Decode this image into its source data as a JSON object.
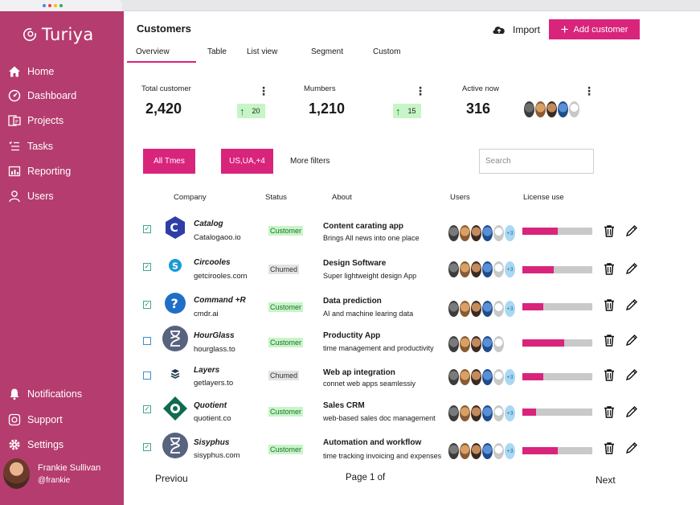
{
  "app": {
    "name": "Turiya"
  },
  "nav": {
    "items": [
      {
        "label": "Home",
        "icon": "home-icon"
      },
      {
        "label": "Dashboard",
        "icon": "dashboard-icon"
      },
      {
        "label": "Projects",
        "icon": "projects-icon"
      },
      {
        "label": "Tasks",
        "icon": "tasks-icon"
      },
      {
        "label": "Reporting",
        "icon": "reporting-icon"
      },
      {
        "label": "Users",
        "icon": "users-icon"
      }
    ],
    "bottom": [
      {
        "label": "Notifications",
        "icon": "bell-icon"
      },
      {
        "label": "Support",
        "icon": "support-icon"
      },
      {
        "label": "Settings",
        "icon": "gear-icon"
      }
    ]
  },
  "profile": {
    "name": "Frankie Sullivan",
    "handle": "@frankie"
  },
  "header": {
    "title": "Customers",
    "import_label": "Import",
    "add_label": "Add customer"
  },
  "tabs": [
    "Overview",
    "Table",
    "List view",
    "Segment",
    "Custom"
  ],
  "stats": [
    {
      "label": "Total customer",
      "value": "2,420",
      "delta": "20"
    },
    {
      "label": "Mumbers",
      "value": "1,210",
      "delta": "15"
    },
    {
      "label": "Active now",
      "value": "316"
    }
  ],
  "filters": {
    "times": "All Tmes",
    "regions": "US,UA,+4",
    "more": "More filters",
    "search_placeholder": "Search"
  },
  "table": {
    "headers": [
      "Company",
      "Status",
      "About",
      "Users",
      "License use"
    ],
    "rows": [
      {
        "checked": true,
        "name": "Catalog",
        "domain": "Catalogaoo.io",
        "status": "Customer",
        "about_title": "Content carating app",
        "about_sub": "Brings All news into one place",
        "users_more": "+3",
        "license": 0.5
      },
      {
        "checked": true,
        "name": "Circooles",
        "domain": "getcirooles.com",
        "status": "Chumed",
        "about_title": "Design Software",
        "about_sub": "Super lightweight design App",
        "users_more": "+3",
        "license": 0.45
      },
      {
        "checked": true,
        "name": "Command +R",
        "domain": "cmdr.ai",
        "status": "Customer",
        "about_title": "Data prediction",
        "about_sub": "AI and machine learing data",
        "users_more": "+3",
        "license": 0.3
      },
      {
        "checked": false,
        "name": "HourGlass",
        "domain": "hourglass.to",
        "status": "Customer",
        "about_title": "Productity App",
        "about_sub": "time management and productivity",
        "users_more": "",
        "license": 0.6
      },
      {
        "checked": false,
        "name": "Layers",
        "domain": "getlayers.to",
        "status": "Chumed",
        "about_title": "Web ap integration",
        "about_sub": "connet web apps seamlessiy",
        "users_more": "+3",
        "license": 0.3
      },
      {
        "checked": true,
        "name": "Quotient",
        "domain": "quotient.co",
        "status": "Customer",
        "about_title": "Sales CRM",
        "about_sub": "web-based sales doc management",
        "users_more": "+3",
        "license": 0.2
      },
      {
        "checked": true,
        "name": "Sisyphus",
        "domain": "sisyphus.com",
        "status": "Customer",
        "about_title": "Automation and workflow",
        "about_sub": "time tracking invoicing and expenses",
        "users_more": "+3",
        "license": 0.5
      }
    ]
  },
  "pager": {
    "prev": "Previou",
    "info": "Page 1 of",
    "next": "Next"
  },
  "colors": {
    "sidebar": "#b53c6f",
    "accent": "#d9247c",
    "badge_green": "#c7f5c7"
  }
}
